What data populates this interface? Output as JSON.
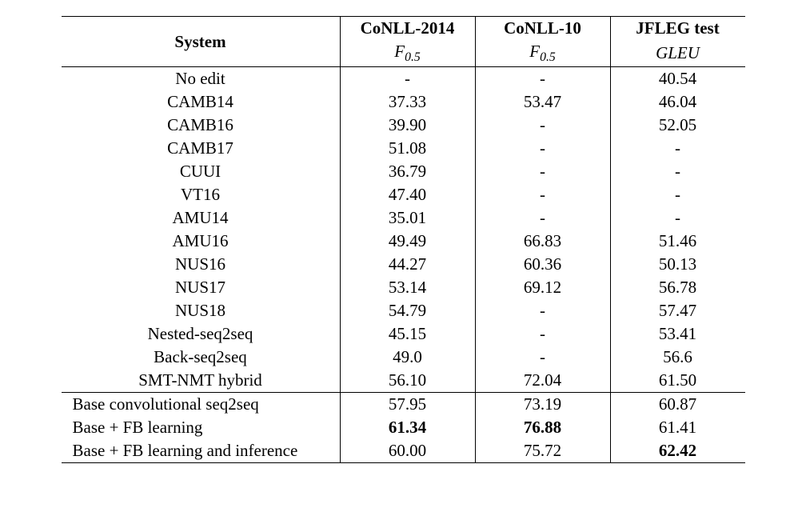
{
  "table": {
    "headers": {
      "system": "System",
      "col1_name": "CoNLL-2014",
      "col1_metric_base": "F",
      "col1_metric_sub": "0.5",
      "col2_name": "CoNLL-10",
      "col2_metric_base": "F",
      "col2_metric_sub": "0.5",
      "col3_name": "JFLEG test",
      "col3_metric": "GLEU"
    },
    "group1": [
      {
        "system": "No edit",
        "c1": "-",
        "c2": "-",
        "c3": "40.54",
        "bold": {}
      },
      {
        "system": "CAMB14",
        "c1": "37.33",
        "c2": "53.47",
        "c3": "46.04",
        "bold": {}
      },
      {
        "system": "CAMB16",
        "c1": "39.90",
        "c2": "-",
        "c3": "52.05",
        "bold": {}
      },
      {
        "system": "CAMB17",
        "c1": "51.08",
        "c2": "-",
        "c3": "-",
        "bold": {}
      },
      {
        "system": "CUUI",
        "c1": "36.79",
        "c2": "-",
        "c3": "-",
        "bold": {}
      },
      {
        "system": "VT16",
        "c1": "47.40",
        "c2": "-",
        "c3": "-",
        "bold": {}
      },
      {
        "system": "AMU14",
        "c1": "35.01",
        "c2": "-",
        "c3": "-",
        "bold": {}
      },
      {
        "system": "AMU16",
        "c1": "49.49",
        "c2": "66.83",
        "c3": "51.46",
        "bold": {}
      },
      {
        "system": "NUS16",
        "c1": "44.27",
        "c2": "60.36",
        "c3": "50.13",
        "bold": {}
      },
      {
        "system": "NUS17",
        "c1": "53.14",
        "c2": "69.12",
        "c3": "56.78",
        "bold": {}
      },
      {
        "system": "NUS18",
        "c1": "54.79",
        "c2": "-",
        "c3": "57.47",
        "bold": {}
      },
      {
        "system": "Nested-seq2seq",
        "c1": "45.15",
        "c2": "-",
        "c3": "53.41",
        "bold": {}
      },
      {
        "system": "Back-seq2seq",
        "c1": "49.0",
        "c2": "-",
        "c3": "56.6",
        "bold": {}
      },
      {
        "system": "SMT-NMT hybrid",
        "c1": "56.10",
        "c2": "72.04",
        "c3": "61.50",
        "bold": {}
      }
    ],
    "group2": [
      {
        "system": "Base convolutional seq2seq",
        "c1": "57.95",
        "c2": "73.19",
        "c3": "60.87",
        "bold": {}
      },
      {
        "system": "Base + FB learning",
        "c1": "61.34",
        "c2": "76.88",
        "c3": "61.41",
        "bold": {
          "c1": true,
          "c2": true
        }
      },
      {
        "system": "Base + FB learning and inference",
        "c1": "60.00",
        "c2": "75.72",
        "c3": "62.42",
        "bold": {
          "c3": true
        }
      }
    ]
  },
  "style": {
    "font_family": "Times New Roman",
    "font_size_pt": 21,
    "text_color": "#000000",
    "background_color": "#ffffff",
    "border_color": "#000000",
    "col_widths": {
      "system": 320,
      "metric": 140
    }
  }
}
